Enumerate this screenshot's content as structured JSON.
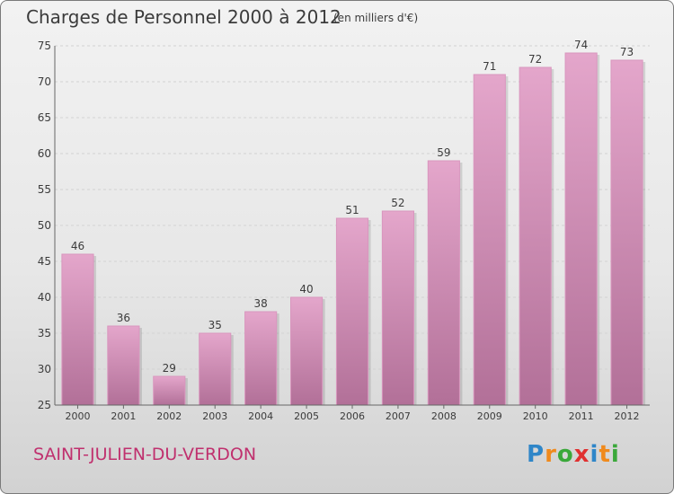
{
  "header": {
    "title": "Charges de Personnel 2000 à 2012",
    "unit": "(en milliers d'€)"
  },
  "footer": {
    "location": "SAINT-JULIEN-DU-VERDON",
    "brand_letters": [
      {
        "char": "P",
        "color": "#2f86c8"
      },
      {
        "char": "r",
        "color": "#f08a1c"
      },
      {
        "char": "o",
        "color": "#3aa83a"
      },
      {
        "char": "x",
        "color": "#e03030"
      },
      {
        "char": "i",
        "color": "#2f86c8"
      },
      {
        "char": "t",
        "color": "#f08a1c"
      },
      {
        "char": "i",
        "color": "#3aa83a"
      }
    ]
  },
  "chart_data": {
    "type": "bar",
    "title": "Charges de Personnel 2000 à 2012",
    "subtitle": "(en milliers d'€)",
    "categories": [
      "2000",
      "2001",
      "2002",
      "2003",
      "2004",
      "2005",
      "2006",
      "2007",
      "2008",
      "2009",
      "2010",
      "2011",
      "2012"
    ],
    "values": [
      46,
      36,
      29,
      35,
      38,
      40,
      51,
      52,
      59,
      71,
      72,
      74,
      73
    ],
    "ylim": [
      25,
      75
    ],
    "yticks": [
      25,
      30,
      35,
      40,
      45,
      50,
      55,
      60,
      65,
      70,
      75
    ],
    "grid": true,
    "colors": {
      "bar_top": "#e4a6cb",
      "bar_bottom": "#b27098",
      "bar_edge": "#d996be",
      "grid": "#d2d2d2",
      "axis": "#666666",
      "text": "#3b3b3b"
    }
  }
}
